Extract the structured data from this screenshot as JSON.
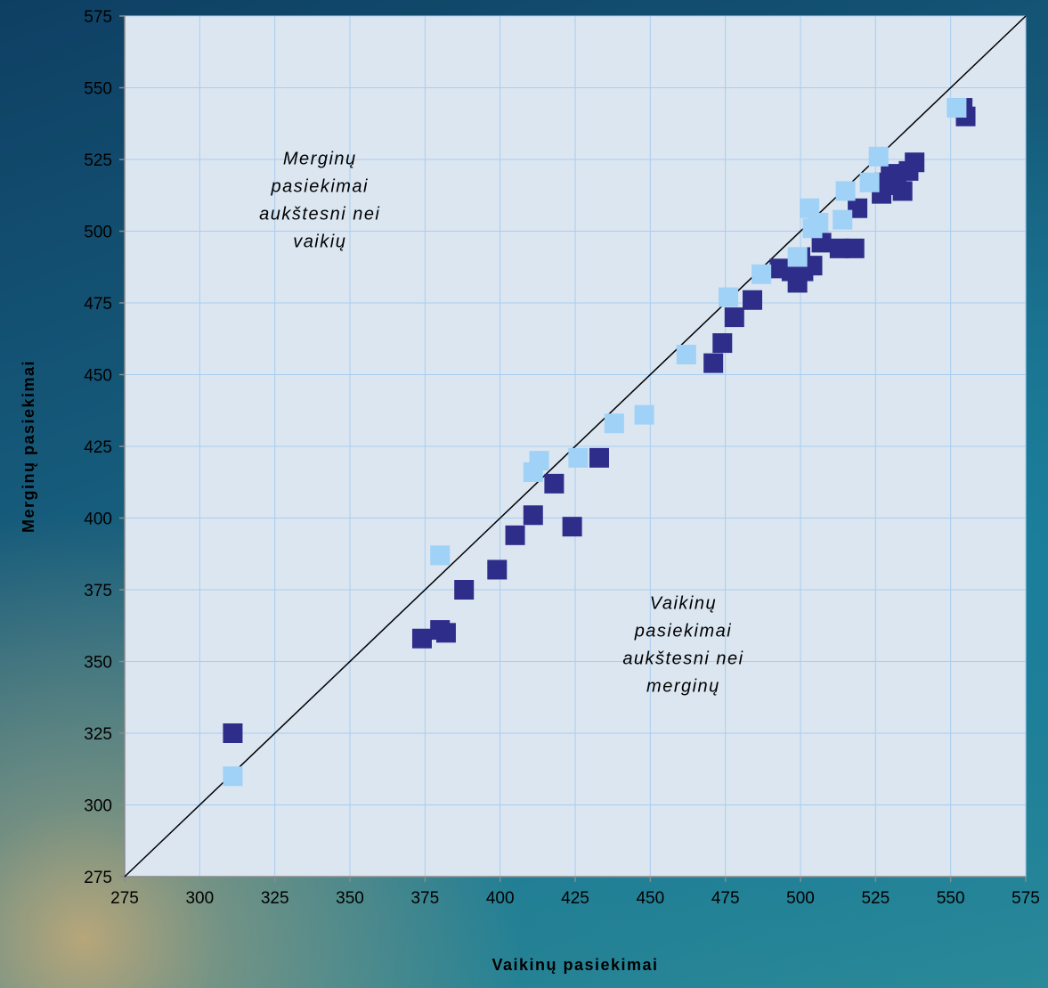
{
  "chart_data": {
    "type": "scatter",
    "xlabel": "Vaikinų pasiekimai",
    "ylabel": "Merginų pasiekimai",
    "xlim": [
      275,
      575
    ],
    "ylim": [
      275,
      575
    ],
    "xticks": [
      275,
      300,
      325,
      350,
      375,
      400,
      425,
      450,
      475,
      500,
      525,
      550,
      575
    ],
    "yticks": [
      275,
      300,
      325,
      350,
      375,
      400,
      425,
      450,
      475,
      500,
      525,
      550,
      575
    ],
    "grid": true,
    "reference_line": {
      "from": [
        275,
        275
      ],
      "to": [
        575,
        575
      ]
    },
    "annotations": [
      {
        "lines": [
          "Merginų",
          "pasiekimai",
          "aukštesni nei",
          "vaikių"
        ],
        "at": [
          340,
          511
        ]
      },
      {
        "lines": [
          "Vaikinų",
          "pasiekimai",
          "aukštesni nei",
          "merginų"
        ],
        "at": [
          461,
          356
        ]
      }
    ],
    "series": [
      {
        "color": "#2e2e8a",
        "points": [
          [
            311,
            325
          ],
          [
            374,
            358
          ],
          [
            380,
            361
          ],
          [
            382,
            360
          ],
          [
            388,
            375
          ],
          [
            399,
            382
          ],
          [
            405,
            394
          ],
          [
            411,
            401
          ],
          [
            418,
            412
          ],
          [
            424,
            397
          ],
          [
            433,
            421
          ],
          [
            471,
            454
          ],
          [
            474,
            461
          ],
          [
            478,
            470
          ],
          [
            484,
            476
          ],
          [
            493,
            487
          ],
          [
            497,
            486
          ],
          [
            499,
            482
          ],
          [
            500,
            491
          ],
          [
            501,
            486
          ],
          [
            504,
            488
          ],
          [
            507,
            496
          ],
          [
            513,
            494
          ],
          [
            518,
            494
          ],
          [
            519,
            508
          ],
          [
            527,
            513
          ],
          [
            528,
            517
          ],
          [
            530,
            520
          ],
          [
            532,
            516
          ],
          [
            534,
            514
          ],
          [
            536,
            521
          ],
          [
            538,
            524
          ],
          [
            554,
            543
          ],
          [
            555,
            540
          ]
        ]
      },
      {
        "color": "#9fd2f6",
        "points": [
          [
            311,
            310
          ],
          [
            380,
            387
          ],
          [
            411,
            416
          ],
          [
            413,
            420
          ],
          [
            426,
            421
          ],
          [
            438,
            433
          ],
          [
            448,
            436
          ],
          [
            462,
            457
          ],
          [
            476,
            477
          ],
          [
            487,
            485
          ],
          [
            499,
            491
          ],
          [
            503,
            508
          ],
          [
            504,
            501
          ],
          [
            506,
            503
          ],
          [
            514,
            504
          ],
          [
            515,
            514
          ],
          [
            523,
            517
          ],
          [
            526,
            526
          ],
          [
            552,
            543
          ]
        ]
      }
    ]
  }
}
